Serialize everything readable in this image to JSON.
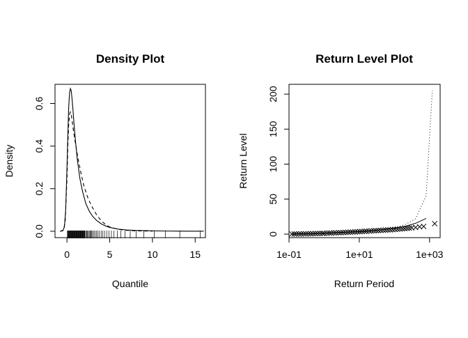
{
  "chart_data": [
    {
      "type": "line",
      "title": "Density Plot",
      "xlabel": "Quantile",
      "ylabel": "Density",
      "xlim": [
        -1.4,
        16.2
      ],
      "ylim": [
        -0.03,
        0.69
      ],
      "x_ticks": [
        "0",
        "5",
        "10",
        "15"
      ],
      "y_ticks": [
        "0.0",
        "0.2",
        "0.4",
        "0.6"
      ],
      "series": [
        {
          "style": "solid",
          "x": [
            -0.8,
            -0.5,
            -0.3,
            -0.15,
            0.0,
            0.1,
            0.2,
            0.3,
            0.4,
            0.5,
            0.6,
            0.7,
            0.85,
            1.0,
            1.2,
            1.5,
            1.8,
            2.2,
            2.6,
            3.0,
            3.5,
            4.0,
            4.5,
            5.0,
            6.0,
            7.0,
            8.0,
            10.0,
            12.0,
            14.0,
            16.0
          ],
          "y": [
            0.0,
            0.002,
            0.02,
            0.1,
            0.3,
            0.45,
            0.58,
            0.65,
            0.67,
            0.66,
            0.62,
            0.57,
            0.49,
            0.42,
            0.34,
            0.25,
            0.19,
            0.13,
            0.095,
            0.07,
            0.05,
            0.035,
            0.025,
            0.018,
            0.01,
            0.006,
            0.004,
            0.002,
            0.001,
            0.0005,
            0.0003
          ]
        },
        {
          "style": "dashed",
          "x": [
            -0.8,
            -0.4,
            -0.2,
            0.0,
            0.1,
            0.2,
            0.3,
            0.4,
            0.5,
            0.6,
            0.8,
            1.0,
            1.3,
            1.6,
            2.0,
            2.5,
            3.0,
            3.5,
            4.0,
            4.5,
            5.0,
            6.0,
            7.0,
            8.0,
            10.0
          ],
          "y": [
            0.0,
            0.005,
            0.05,
            0.25,
            0.4,
            0.5,
            0.55,
            0.56,
            0.55,
            0.52,
            0.46,
            0.41,
            0.34,
            0.28,
            0.21,
            0.15,
            0.11,
            0.075,
            0.05,
            0.032,
            0.02,
            0.009,
            0.004,
            0.002,
            0.0005
          ]
        }
      ],
      "rug_x": [
        0.05,
        0.1,
        0.15,
        0.2,
        0.25,
        0.3,
        0.35,
        0.4,
        0.45,
        0.5,
        0.55,
        0.6,
        0.65,
        0.7,
        0.75,
        0.8,
        0.85,
        0.9,
        0.95,
        1.0,
        1.05,
        1.1,
        1.15,
        1.2,
        1.25,
        1.3,
        1.35,
        1.4,
        1.45,
        1.5,
        1.55,
        1.6,
        1.65,
        1.7,
        1.75,
        1.8,
        1.85,
        1.9,
        1.95,
        2.0,
        2.05,
        2.1,
        2.2,
        2.3,
        2.4,
        2.5,
        2.6,
        2.7,
        2.8,
        2.9,
        3.0,
        3.15,
        3.3,
        3.45,
        3.6,
        3.8,
        4.0,
        4.2,
        4.4,
        4.65,
        4.9,
        5.2,
        5.5,
        5.9,
        6.3,
        6.8,
        7.4,
        8.1,
        9.0,
        10.2,
        11.5,
        13.2,
        15.6
      ]
    },
    {
      "type": "scatter",
      "title": "Return Level Plot",
      "xlabel": "Return Period",
      "ylabel": "Return Level",
      "x_scale": "log",
      "xlim": [
        0.1,
        2000
      ],
      "ylim": [
        -5,
        214
      ],
      "x_ticks": [
        {
          "value": 0.1,
          "label": "1e-01"
        },
        {
          "value": 10,
          "label": "1e+01"
        },
        {
          "value": 1000,
          "label": "1e+03"
        }
      ],
      "y_ticks": [
        "0",
        "50",
        "100",
        "150",
        "200"
      ],
      "model_line": {
        "x": [
          0.12,
          0.2,
          0.5,
          1,
          2,
          5,
          10,
          20,
          50,
          100,
          200,
          400,
          800
        ],
        "y": [
          0.2,
          0.5,
          1.0,
          1.5,
          2.0,
          3.0,
          3.8,
          4.8,
          6.5,
          8.2,
          11.0,
          15.5,
          22.5
        ]
      },
      "dotted_line": {
        "x": [
          0.12,
          0.2,
          0.5,
          1,
          2,
          5,
          10,
          20,
          50,
          100,
          200,
          400,
          800,
          1200
        ],
        "y": [
          0.2,
          0.5,
          1.0,
          1.5,
          2.0,
          3.0,
          3.8,
          4.8,
          6.8,
          9.0,
          13.5,
          22.0,
          55.0,
          205.0
        ]
      },
      "points_x": [
        0.12,
        0.14,
        0.16,
        0.19,
        0.22,
        0.26,
        0.3,
        0.35,
        0.41,
        0.48,
        0.56,
        0.65,
        0.76,
        0.89,
        1.0,
        1.2,
        1.4,
        1.6,
        1.9,
        2.2,
        2.6,
        3.0,
        3.5,
        4.1,
        4.8,
        5.6,
        6.5,
        7.6,
        8.9,
        10.4,
        12,
        14,
        16,
        19,
        22,
        26,
        30,
        35,
        41,
        48,
        56,
        65,
        76,
        89,
        104,
        122,
        143,
        167,
        195,
        228,
        266,
        311,
        400,
        520,
        680,
        1400
      ],
      "points_y": [
        0.2,
        0.22,
        0.25,
        0.3,
        0.35,
        0.4,
        0.45,
        0.5,
        0.6,
        0.7,
        0.8,
        0.9,
        1.0,
        1.1,
        1.2,
        1.35,
        1.5,
        1.6,
        1.75,
        1.9,
        2.05,
        2.2,
        2.35,
        2.5,
        2.7,
        2.9,
        3.05,
        3.2,
        3.4,
        3.6,
        3.8,
        4.0,
        4.2,
        4.4,
        4.6,
        4.8,
        5.0,
        5.2,
        5.4,
        5.6,
        5.8,
        6.0,
        6.2,
        6.5,
        6.8,
        7.1,
        7.4,
        7.7,
        8.0,
        8.3,
        8.6,
        9.0,
        9.5,
        10.5,
        11.0,
        15.0
      ]
    }
  ]
}
